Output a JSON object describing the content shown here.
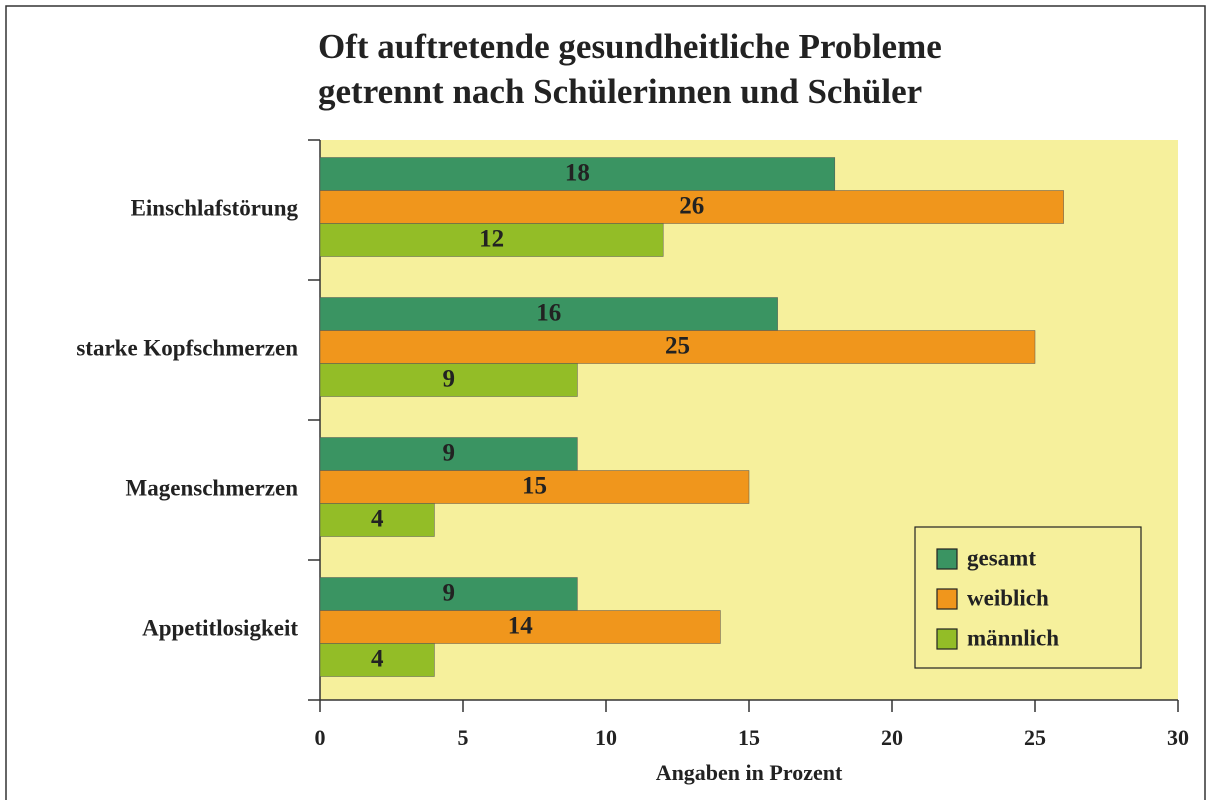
{
  "chart_data": {
    "type": "bar",
    "orientation": "horizontal",
    "title": [
      "Oft auftretende gesundheitliche Probleme",
      "getrennt nach Schülerinnen und Schüler"
    ],
    "xlabel": "Angaben in Prozent",
    "categories": [
      "Einschlafstörung",
      "starke Kopfschmerzen",
      "Magenschmerzen",
      "Appetitlosigkeit"
    ],
    "series": [
      {
        "name": "gesamt",
        "color": "#3a9462",
        "values": [
          18,
          16,
          9,
          9
        ]
      },
      {
        "name": "weiblich",
        "color": "#f0961c",
        "values": [
          26,
          25,
          15,
          14
        ]
      },
      {
        "name": "männlich",
        "color": "#93bd27",
        "values": [
          12,
          9,
          4,
          4
        ]
      }
    ],
    "xlim": [
      0,
      30
    ],
    "xticks": [
      0,
      5,
      10,
      15,
      20,
      25,
      30
    ],
    "background": "#f6f09c",
    "legend": "lower right"
  }
}
